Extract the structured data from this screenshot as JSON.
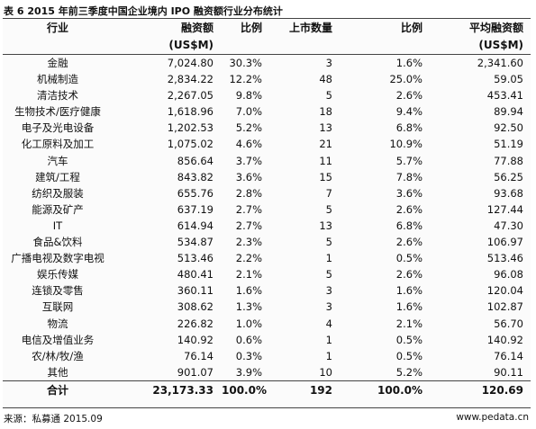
{
  "title": "表 6  2015 年前三季度中国企业境内 IPO 融资额行业分布统计",
  "headers": {
    "industry": "行业",
    "financing_line1": "融资额",
    "financing_line2": "(US$M)",
    "ratio1": "比例",
    "listings": "上市数量",
    "ratio2": "比例",
    "avg_line1": "平均融资额",
    "avg_line2": "(US$M)"
  },
  "rows": [
    {
      "industry": "金融",
      "financing": "7,024.80",
      "ratio1": "30.3%",
      "listings": "3",
      "ratio2": "1.6%",
      "avg": "2,341.60"
    },
    {
      "industry": "机械制造",
      "financing": "2,834.22",
      "ratio1": "12.2%",
      "listings": "48",
      "ratio2": "25.0%",
      "avg": "59.05"
    },
    {
      "industry": "清洁技术",
      "financing": "2,267.05",
      "ratio1": "9.8%",
      "listings": "5",
      "ratio2": "2.6%",
      "avg": "453.41"
    },
    {
      "industry": "生物技术/医疗健康",
      "financing": "1,618.96",
      "ratio1": "7.0%",
      "listings": "18",
      "ratio2": "9.4%",
      "avg": "89.94"
    },
    {
      "industry": "电子及光电设备",
      "financing": "1,202.53",
      "ratio1": "5.2%",
      "listings": "13",
      "ratio2": "6.8%",
      "avg": "92.50"
    },
    {
      "industry": "化工原料及加工",
      "financing": "1,075.02",
      "ratio1": "4.6%",
      "listings": "21",
      "ratio2": "10.9%",
      "avg": "51.19"
    },
    {
      "industry": "汽车",
      "financing": "856.64",
      "ratio1": "3.7%",
      "listings": "11",
      "ratio2": "5.7%",
      "avg": "77.88"
    },
    {
      "industry": "建筑/工程",
      "financing": "843.82",
      "ratio1": "3.6%",
      "listings": "15",
      "ratio2": "7.8%",
      "avg": "56.25"
    },
    {
      "industry": "纺织及服装",
      "financing": "655.76",
      "ratio1": "2.8%",
      "listings": "7",
      "ratio2": "3.6%",
      "avg": "93.68"
    },
    {
      "industry": "能源及矿产",
      "financing": "637.19",
      "ratio1": "2.7%",
      "listings": "5",
      "ratio2": "2.6%",
      "avg": "127.44"
    },
    {
      "industry": "IT",
      "financing": "614.94",
      "ratio1": "2.7%",
      "listings": "13",
      "ratio2": "6.8%",
      "avg": "47.30"
    },
    {
      "industry": "食品&饮料",
      "financing": "534.87",
      "ratio1": "2.3%",
      "listings": "5",
      "ratio2": "2.6%",
      "avg": "106.97"
    },
    {
      "industry": "广播电视及数字电视",
      "financing": "513.46",
      "ratio1": "2.2%",
      "listings": "1",
      "ratio2": "0.5%",
      "avg": "513.46"
    },
    {
      "industry": "娱乐传媒",
      "financing": "480.41",
      "ratio1": "2.1%",
      "listings": "5",
      "ratio2": "2.6%",
      "avg": "96.08"
    },
    {
      "industry": "连锁及零售",
      "financing": "360.11",
      "ratio1": "1.6%",
      "listings": "3",
      "ratio2": "1.6%",
      "avg": "120.04"
    },
    {
      "industry": "互联网",
      "financing": "308.62",
      "ratio1": "1.3%",
      "listings": "3",
      "ratio2": "1.6%",
      "avg": "102.87"
    },
    {
      "industry": "物流",
      "financing": "226.82",
      "ratio1": "1.0%",
      "listings": "4",
      "ratio2": "2.1%",
      "avg": "56.70"
    },
    {
      "industry": "电信及增值业务",
      "financing": "140.92",
      "ratio1": "0.6%",
      "listings": "1",
      "ratio2": "0.5%",
      "avg": "140.92"
    },
    {
      "industry": "农/林/牧/渔",
      "financing": "76.14",
      "ratio1": "0.3%",
      "listings": "1",
      "ratio2": "0.5%",
      "avg": "76.14"
    },
    {
      "industry": "其他",
      "financing": "901.07",
      "ratio1": "3.9%",
      "listings": "10",
      "ratio2": "5.2%",
      "avg": "90.11"
    }
  ],
  "total": {
    "industry": "合计",
    "financing": "23,173.33",
    "ratio1": "100.0%",
    "listings": "192",
    "ratio2": "100.0%",
    "avg": "120.69"
  },
  "footer": {
    "source": "来源：私募通 2015.09",
    "website": "www.pedata.cn"
  }
}
